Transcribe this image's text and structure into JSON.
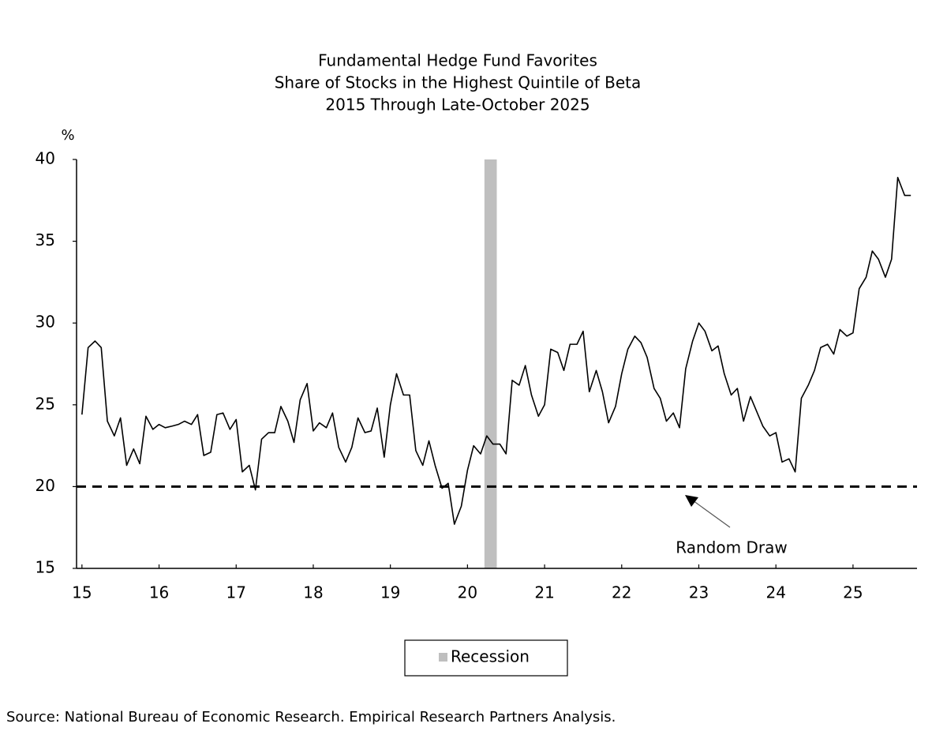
{
  "chart_data": {
    "type": "line",
    "title": "Fundamental Hedge Fund Favorites",
    "subtitle": [
      "Share of Stocks in the Highest Quintile of Beta",
      "2015 Through Late-October 2025"
    ],
    "ylabel": "%",
    "x": [
      15,
      15.08,
      15.17,
      15.25,
      15.33,
      15.42,
      15.5,
      15.58,
      15.67,
      15.75,
      15.83,
      15.92,
      16,
      16.08,
      16.17,
      16.25,
      16.33,
      16.42,
      16.5,
      16.58,
      16.67,
      16.75,
      16.83,
      16.92,
      17,
      17.08,
      17.17,
      17.25,
      17.33,
      17.42,
      17.5,
      17.58,
      17.67,
      17.75,
      17.83,
      17.92,
      18,
      18.08,
      18.17,
      18.25,
      18.33,
      18.42,
      18.5,
      18.58,
      18.67,
      18.75,
      18.83,
      18.92,
      19,
      19.08,
      19.17,
      19.25,
      19.33,
      19.42,
      19.5,
      19.58,
      19.67,
      19.75,
      19.83,
      19.92,
      20,
      20.08,
      20.17,
      20.25,
      20.33,
      20.42,
      20.5,
      20.58,
      20.67,
      20.75,
      20.83,
      20.92,
      21,
      21.08,
      21.17,
      21.25,
      21.33,
      21.42,
      21.5,
      21.58,
      21.67,
      21.75,
      21.83,
      21.92,
      22,
      22.08,
      22.17,
      22.25,
      22.33,
      22.42,
      22.5,
      22.58,
      22.67,
      22.75,
      22.83,
      22.92,
      23,
      23.08,
      23.17,
      23.25,
      23.33,
      23.42,
      23.5,
      23.58,
      23.67,
      23.75,
      23.83,
      23.92,
      24,
      24.08,
      24.17,
      24.25,
      24.33,
      24.42,
      24.5,
      24.58,
      24.67,
      24.75,
      24.83,
      24.92,
      25,
      25.08,
      25.17,
      25.25,
      25.33,
      25.42,
      25.5,
      25.58,
      25.67,
      25.75
    ],
    "values": [
      24.4,
      28.5,
      28.9,
      28.5,
      24.0,
      23.1,
      24.2,
      21.3,
      22.3,
      21.4,
      24.3,
      23.5,
      23.8,
      23.6,
      23.7,
      23.8,
      24.0,
      23.8,
      24.4,
      21.9,
      22.1,
      24.4,
      24.5,
      23.5,
      24.1,
      20.9,
      21.3,
      19.8,
      22.9,
      23.3,
      23.3,
      24.9,
      24.0,
      22.7,
      25.3,
      26.3,
      23.4,
      23.9,
      23.6,
      24.5,
      22.4,
      21.5,
      22.4,
      24.2,
      23.3,
      23.4,
      24.8,
      21.8,
      25.0,
      26.9,
      25.6,
      25.6,
      22.2,
      21.3,
      22.8,
      21.3,
      19.9,
      20.2,
      17.7,
      18.8,
      21.0,
      22.5,
      22.0,
      23.1,
      22.6,
      22.6,
      22.0,
      26.5,
      26.2,
      27.4,
      25.6,
      24.3,
      25.0,
      28.4,
      28.2,
      27.1,
      28.7,
      28.7,
      29.5,
      25.8,
      27.1,
      25.8,
      23.9,
      24.9,
      26.9,
      28.4,
      29.2,
      28.8,
      27.9,
      26.0,
      25.4,
      24.0,
      24.5,
      23.6,
      27.2,
      28.9,
      30.0,
      29.5,
      28.3,
      28.6,
      26.9,
      25.6,
      26.0,
      24.0,
      25.5,
      24.6,
      23.7,
      23.1,
      23.3,
      21.5,
      21.7,
      20.9,
      25.4,
      26.2,
      27.1,
      28.5,
      28.7,
      28.1,
      29.6,
      29.2,
      29.4,
      32.1,
      32.8,
      34.4,
      33.9,
      32.8,
      33.9,
      38.9,
      37.8,
      37.8
    ],
    "color": "#000000",
    "xlim": [
      14.93,
      25.83
    ],
    "xticks": [
      15,
      16,
      17,
      18,
      19,
      20,
      21,
      22,
      23,
      24,
      25
    ],
    "ylim": [
      15,
      40
    ],
    "yticks": [
      15,
      20,
      25,
      30,
      35,
      40
    ],
    "reference_line": 20,
    "annotation": "Random Draw",
    "recession": {
      "label": "Recession",
      "range": [
        20.22,
        20.38
      ],
      "color": "#bfbfbf"
    },
    "source": "Source: National Bureau of Economic Research. Empirical Research Partners Analysis."
  }
}
